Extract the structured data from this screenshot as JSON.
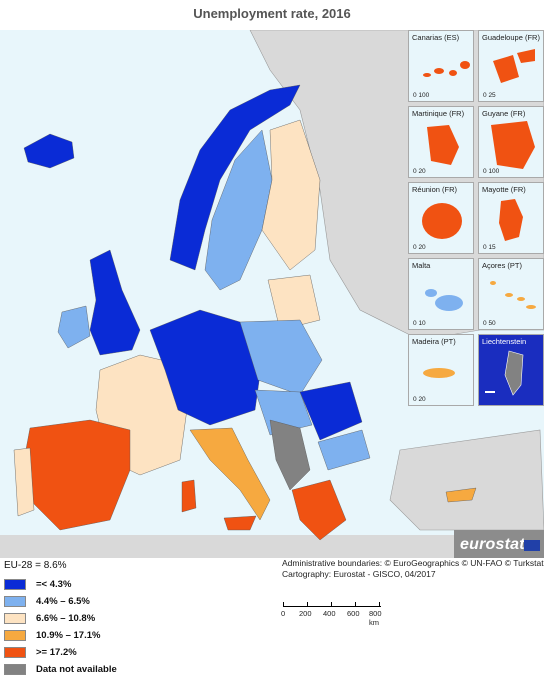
{
  "title": "Unemployment rate, 2016",
  "legend": {
    "eu_average": "EU-28 = 8.6%",
    "classes": [
      {
        "label": "=< 4.3%",
        "color": "#0a2bd6"
      },
      {
        "label": "4.4% – 6.5%",
        "color": "#7eb1ef"
      },
      {
        "label": "6.6% – 10.8%",
        "color": "#fde3c2"
      },
      {
        "label": "10.9% – 17.1%",
        "color": "#f6a940"
      },
      {
        "label": ">= 17.2%",
        "color": "#f05212"
      },
      {
        "label": "Data not available",
        "color": "#828282"
      }
    ]
  },
  "insets": [
    {
      "name": "Canarias (ES)",
      "scale": [
        "0",
        "100"
      ]
    },
    {
      "name": "Guadeloupe (FR)",
      "scale": [
        "0",
        "25"
      ]
    },
    {
      "name": "Martinique (FR)",
      "scale": [
        "0",
        "20"
      ]
    },
    {
      "name": "Guyane (FR)",
      "scale": [
        "0",
        "100"
      ]
    },
    {
      "name": "Réunion (FR)",
      "scale": [
        "0",
        "20"
      ]
    },
    {
      "name": "Mayotte (FR)",
      "scale": [
        "0",
        "15"
      ]
    },
    {
      "name": "Malta",
      "scale": [
        "0",
        "10"
      ]
    },
    {
      "name": "Açores (PT)",
      "scale": [
        "0",
        "50"
      ]
    },
    {
      "name": "Madeira (PT)",
      "scale": [
        "0",
        "20"
      ]
    },
    {
      "name": "Liechtenstein",
      "scale": [
        "",
        ""
      ]
    }
  ],
  "credits": {
    "line1": "Administrative boundaries: © EuroGeographics © UN-FAO © Turkstat",
    "line2": "Cartography: Eurostat - GISCO, 04/2017"
  },
  "scale_bar": {
    "labels": [
      "0",
      "200",
      "400",
      "600",
      "800 km"
    ]
  },
  "logo": "eurostat",
  "colors": {
    "sea": "#e8f6fb",
    "non_eu": "#d9d9d9",
    "border": "#9a9a9a"
  }
}
